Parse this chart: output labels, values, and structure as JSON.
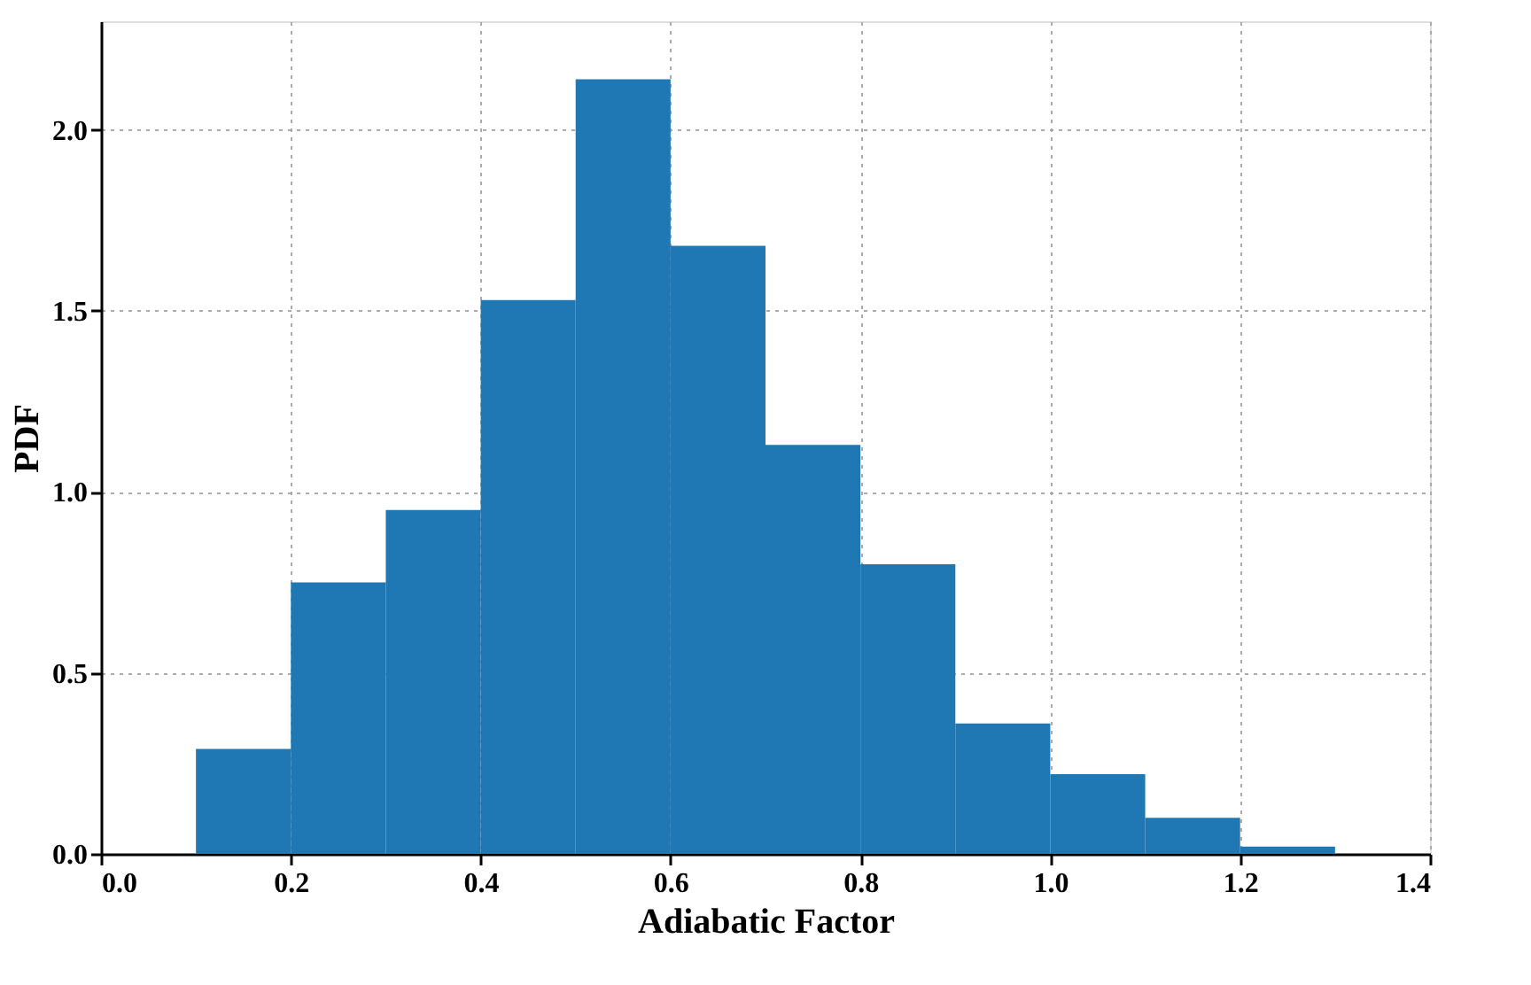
{
  "chart_data": {
    "type": "histogram",
    "xlabel": "Adiabatic Factor",
    "ylabel": "PDF",
    "bins": [
      0.1,
      0.2,
      0.3,
      0.4,
      0.5,
      0.6,
      0.7,
      0.8,
      0.9,
      1.0,
      1.1,
      1.2,
      1.3
    ],
    "values": [
      0.29,
      0.75,
      0.95,
      1.53,
      2.14,
      1.68,
      1.13,
      0.8,
      0.36,
      0.22,
      0.1,
      0.02
    ],
    "color": "#1f77b4",
    "xlim": [
      0.0,
      1.4
    ],
    "xticks": [
      {
        "value": 0.0,
        "label": "0.0"
      },
      0.2,
      0.4,
      0.6,
      0.8,
      {
        "value": 1.0,
        "label": "1.0"
      },
      1.2,
      1.4
    ],
    "ylim": [
      0.0,
      2.3
    ],
    "yticks": [
      {
        "value": 0.0,
        "label": "0.0"
      },
      {
        "value": 0.5,
        "label": "0.5"
      },
      {
        "value": 1.0,
        "label": "1.0"
      },
      {
        "value": 1.5,
        "label": "1.5"
      },
      {
        "value": 2.0,
        "label": "2.0"
      }
    ],
    "grid": true
  }
}
